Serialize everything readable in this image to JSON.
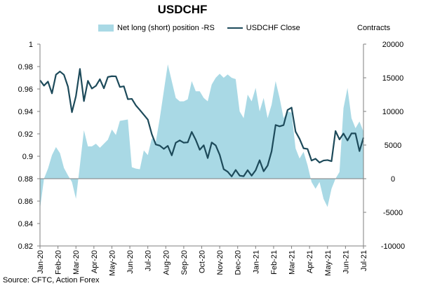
{
  "chart_data": {
    "type": "area+line",
    "title": "USDCHF",
    "right_axis_unit": "Contracts",
    "source": "Source: CFTC, Action Forex",
    "legend": {
      "area_series": "Net long (short) position -RS",
      "line_series": "USDCHF Close",
      "placement": "top"
    },
    "left_axis": {
      "min": 0.82,
      "max": 1.0,
      "step": 0.02,
      "ticks": [
        "1",
        "0.98",
        "0.96",
        "0.94",
        "0.92",
        "0.9",
        "0.88",
        "0.86",
        "0.84",
        "0.82"
      ]
    },
    "right_axis": {
      "min": -10000,
      "max": 20000,
      "step": 5000,
      "ticks": [
        "20000",
        "15000",
        "10000",
        "5000",
        "0",
        "-5000",
        "-10000"
      ]
    },
    "x_labels": [
      "Jan-20",
      "Feb-20",
      "Mar-20",
      "Apr-20",
      "May-20",
      "Jun-20",
      "Jul-20",
      "Aug-20",
      "Sep-20",
      "Oct-20",
      "Nov-20",
      "Dec-20",
      "Jan-21",
      "Feb-21",
      "Mar-21",
      "Apr-21",
      "May-21",
      "Jun-21",
      "Jul-21"
    ],
    "grid": false,
    "colors": {
      "area": "#a9d9e5",
      "line": "#1d4a5a",
      "axis": "#7f7f7f"
    },
    "weeks": 82,
    "net_position": [
      -4500,
      0,
      1500,
      3500,
      4700,
      3800,
      1600,
      500,
      -500,
      -3000,
      2000,
      7200,
      4800,
      4800,
      5200,
      4600,
      5200,
      5800,
      7300,
      6500,
      8600,
      8700,
      8800,
      1700,
      1500,
      1400,
      4200,
      3500,
      6000,
      5500,
      9000,
      13000,
      17000,
      14500,
      12000,
      11500,
      11500,
      11800,
      14500,
      13000,
      13000,
      12000,
      11500,
      14000,
      15000,
      15600,
      15000,
      15500,
      15000,
      14800,
      10000,
      9000,
      12500,
      11500,
      13500,
      10000,
      12000,
      9000,
      11000,
      14500,
      12000,
      9000,
      10000,
      9800,
      4500,
      3000,
      4000,
      2000,
      -500,
      -1500,
      -500,
      -3000,
      -4200,
      -1500,
      0,
      1000,
      10500,
      13500,
      9000,
      7500,
      8500,
      7000
    ],
    "usdchf_close": [
      0.9678,
      0.963,
      0.9666,
      0.9561,
      0.9728,
      0.9756,
      0.9727,
      0.9621,
      0.9393,
      0.9536,
      0.9779,
      0.9492,
      0.9673,
      0.9604,
      0.9628,
      0.9687,
      0.9606,
      0.9707,
      0.9714,
      0.9713,
      0.9618,
      0.9624,
      0.9509,
      0.9512,
      0.9454,
      0.9413,
      0.937,
      0.9327,
      0.9197,
      0.9105,
      0.9095,
      0.9066,
      0.9093,
      0.9008,
      0.9121,
      0.9142,
      0.9121,
      0.9124,
      0.9217,
      0.9147,
      0.9058,
      0.9098,
      0.8984,
      0.9123,
      0.9097,
      0.9013,
      0.8885,
      0.8862,
      0.882,
      0.8878,
      0.8827,
      0.8822,
      0.8876,
      0.8827,
      0.8875,
      0.8965,
      0.8866,
      0.8917,
      0.9045,
      0.9279,
      0.9267,
      0.9278,
      0.9413,
      0.9434,
      0.922,
      0.9155,
      0.9071,
      0.9065,
      0.8962,
      0.8978,
      0.8944,
      0.8962,
      0.8966,
      0.8956,
      0.9225,
      0.915,
      0.9203,
      0.9141,
      0.9204,
      0.9204,
      0.9046,
      0.9166
    ]
  }
}
